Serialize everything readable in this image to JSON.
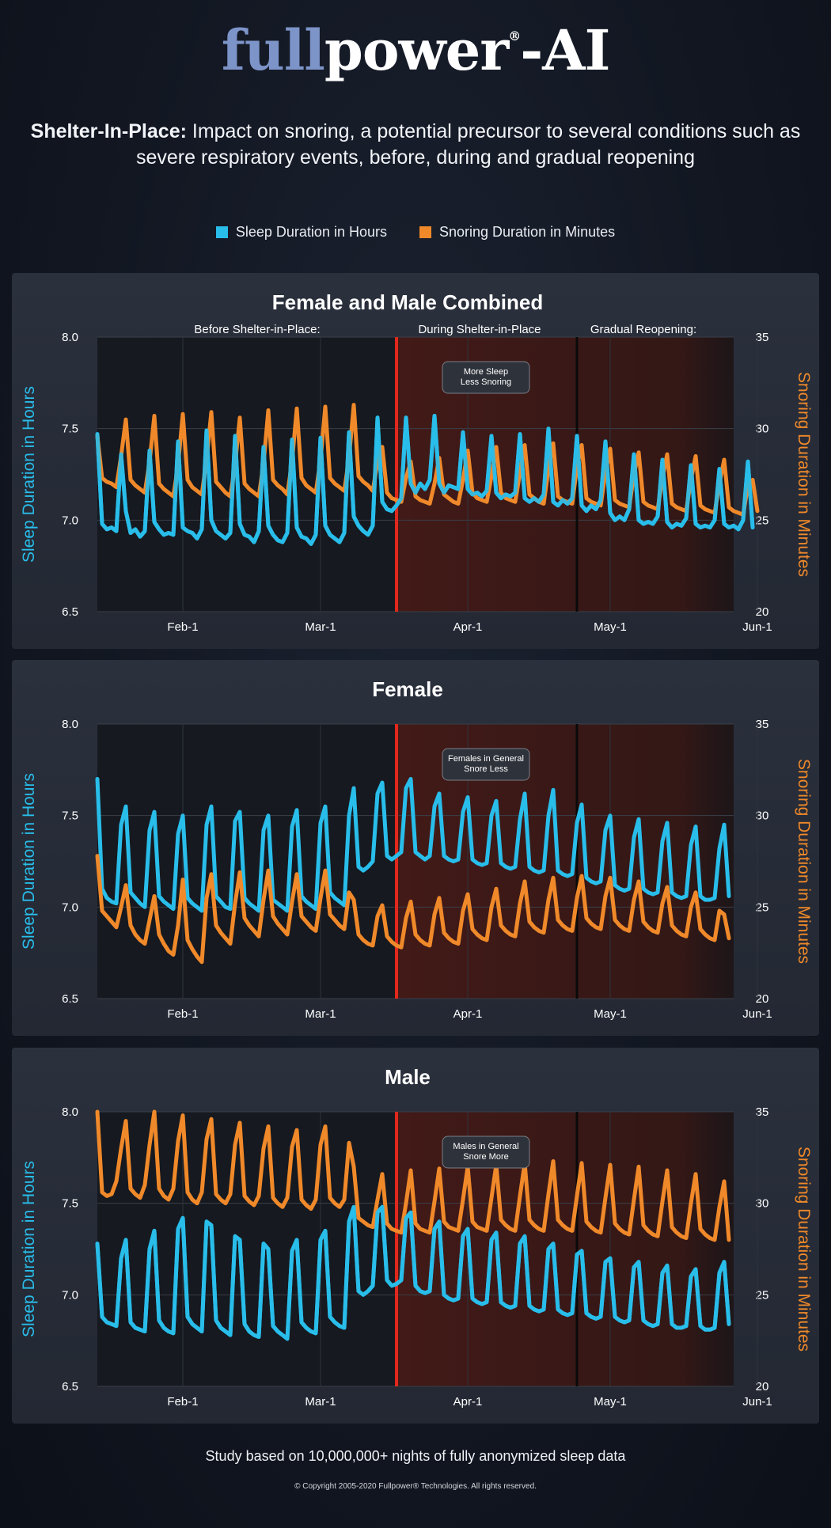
{
  "brand": {
    "logo_part1": "full",
    "logo_part2": "power",
    "logo_reg": "®",
    "logo_part3": "-AI"
  },
  "headline": {
    "bold": "Shelter-In-Place:",
    "text": " Impact on snoring, a potential precursor to several conditions such as severe respiratory events, before, during and gradual reopening"
  },
  "legend": [
    {
      "label": "Sleep Duration in Hours",
      "color": "#29bdea"
    },
    {
      "label": "Snoring Duration in Minutes",
      "color": "#f0892a"
    }
  ],
  "chart_data": [
    {
      "type": "line",
      "title": "Female and Male Combined",
      "phases": [
        "Before Shelter-in-Place:",
        "During Shelter-in-Place",
        "Gradual Reopening:"
      ],
      "annotation": [
        "More Sleep",
        "Less Snoring"
      ],
      "x_ticks": [
        "Feb-1",
        "Mar-1",
        "Apr-1",
        "May-1",
        "Jun-1"
      ],
      "ylabel_left": "Sleep Duration in Hours",
      "ylabel_right": "Snoring Duration in Minutes",
      "ylim_left": [
        6.5,
        8.0
      ],
      "yticks_left": [
        "8.0",
        "7.5",
        "7.0",
        "6.5"
      ],
      "ylim_right": [
        20,
        35
      ],
      "yticks_right": [
        "35",
        "30",
        "25",
        "20"
      ],
      "series": [
        {
          "name": "Sleep Duration in Hours",
          "color": "#29bdea",
          "values": [
            7.47,
            6.98,
            6.95,
            6.96,
            6.94,
            7.36,
            7.05,
            6.93,
            6.95,
            6.91,
            6.94,
            7.38,
            6.99,
            6.95,
            6.92,
            6.93,
            6.92,
            7.43,
            6.96,
            6.94,
            6.93,
            6.9,
            6.95,
            7.49,
            7.0,
            6.94,
            6.92,
            6.9,
            6.93,
            7.46,
            6.98,
            6.92,
            6.91,
            6.88,
            6.94,
            7.4,
            6.97,
            6.92,
            6.89,
            6.88,
            6.93,
            7.44,
            6.96,
            6.91,
            6.9,
            6.87,
            6.92,
            7.45,
            6.97,
            6.92,
            6.9,
            6.88,
            6.93,
            7.48,
            7.02,
            6.97,
            6.94,
            6.92,
            6.97,
            7.56,
            7.1,
            7.06,
            7.05,
            7.08,
            7.12,
            7.56,
            7.2,
            7.15,
            7.2,
            7.17,
            7.22,
            7.57,
            7.2,
            7.15,
            7.19,
            7.18,
            7.17,
            7.48,
            7.17,
            7.14,
            7.15,
            7.13,
            7.16,
            7.46,
            7.15,
            7.12,
            7.14,
            7.13,
            7.15,
            7.47,
            7.12,
            7.1,
            7.12,
            7.1,
            7.14,
            7.5,
            7.1,
            7.08,
            7.11,
            7.09,
            7.12,
            7.46,
            7.08,
            7.05,
            7.08,
            7.06,
            7.11,
            7.43,
            7.04,
            7.0,
            7.02,
            7.0,
            7.06,
            7.36,
            7.0,
            6.98,
            6.99,
            6.98,
            7.02,
            7.33,
            6.99,
            6.96,
            6.98,
            6.97,
            7.01,
            7.3,
            6.98,
            6.96,
            6.97,
            6.96,
            7.0,
            7.28,
            6.98,
            6.96,
            6.97,
            6.95,
            7.0,
            7.32,
            6.96
          ]
        },
        {
          "name": "Snoring Duration in Minutes",
          "color": "#f0892a",
          "values": [
            29.6,
            27.3,
            27.1,
            27.0,
            26.8,
            28.5,
            30.5,
            27.2,
            26.9,
            26.7,
            26.5,
            28.2,
            30.7,
            27.0,
            26.7,
            26.5,
            26.3,
            28.0,
            30.8,
            27.2,
            26.8,
            26.6,
            26.4,
            28.3,
            30.9,
            27.1,
            26.8,
            26.5,
            26.3,
            28.0,
            30.6,
            27.0,
            26.7,
            26.5,
            26.3,
            28.1,
            31.0,
            27.2,
            26.9,
            26.7,
            26.4,
            28.2,
            31.1,
            27.3,
            26.9,
            26.7,
            26.5,
            28.3,
            31.2,
            27.3,
            27.0,
            26.8,
            26.6,
            28.4,
            31.3,
            27.4,
            27.1,
            26.9,
            26.6,
            28.2,
            29.0,
            26.5,
            26.2,
            26.1,
            26.0,
            27.3,
            28.2,
            26.3,
            26.1,
            26.0,
            25.9,
            27.0,
            28.4,
            26.4,
            26.2,
            26.0,
            25.9,
            27.2,
            28.8,
            26.5,
            26.2,
            26.1,
            26.0,
            27.4,
            29.0,
            26.5,
            26.2,
            26.1,
            26.0,
            27.6,
            29.1,
            26.4,
            26.2,
            26.0,
            25.9,
            27.8,
            29.2,
            26.3,
            26.1,
            26.0,
            25.9,
            27.9,
            29.1,
            26.2,
            26.0,
            25.9,
            25.8,
            27.6,
            28.9,
            26.1,
            25.9,
            25.8,
            25.7,
            27.5,
            28.7,
            26.0,
            25.8,
            25.7,
            25.6,
            27.3,
            28.6,
            25.9,
            25.7,
            25.6,
            25.5,
            27.2,
            28.5,
            25.8,
            25.6,
            25.5,
            25.4,
            27.0,
            28.3,
            25.7,
            25.5,
            25.4,
            25.3,
            26.9,
            27.2,
            25.5
          ]
        }
      ]
    },
    {
      "type": "line",
      "title": "Female",
      "annotation": [
        "Females in General",
        "Snore Less"
      ],
      "x_ticks": [
        "Feb-1",
        "Mar-1",
        "Apr-1",
        "May-1",
        "Jun-1"
      ],
      "ylabel_left": "Sleep Duration in Hours",
      "ylabel_right": "Snoring Duration in Minutes",
      "ylim_left": [
        6.5,
        8.0
      ],
      "yticks_left": [
        "8.0",
        "7.5",
        "7.0",
        "6.5"
      ],
      "ylim_right": [
        20,
        35
      ],
      "yticks_right": [
        "35",
        "30",
        "25",
        "20"
      ],
      "series": [
        {
          "name": "Sleep Duration in Hours",
          "color": "#29bdea",
          "values": [
            7.7,
            7.1,
            7.05,
            7.03,
            7.02,
            7.45,
            7.55,
            7.08,
            7.05,
            7.02,
            7.0,
            7.42,
            7.52,
            7.06,
            7.03,
            7.01,
            6.99,
            7.4,
            7.5,
            7.05,
            7.02,
            7.0,
            6.98,
            7.45,
            7.55,
            7.06,
            7.03,
            7.0,
            6.99,
            7.47,
            7.52,
            7.05,
            7.02,
            7.0,
            6.98,
            7.42,
            7.5,
            7.04,
            7.02,
            7.0,
            6.98,
            7.44,
            7.53,
            7.06,
            7.03,
            7.01,
            6.99,
            7.46,
            7.55,
            7.08,
            7.05,
            7.03,
            7.01,
            7.5,
            7.65,
            7.22,
            7.2,
            7.22,
            7.25,
            7.62,
            7.68,
            7.28,
            7.26,
            7.28,
            7.3,
            7.65,
            7.7,
            7.3,
            7.28,
            7.26,
            7.28,
            7.55,
            7.62,
            7.28,
            7.26,
            7.25,
            7.26,
            7.52,
            7.6,
            7.26,
            7.24,
            7.23,
            7.24,
            7.5,
            7.58,
            7.24,
            7.22,
            7.21,
            7.22,
            7.48,
            7.62,
            7.22,
            7.2,
            7.19,
            7.2,
            7.5,
            7.64,
            7.2,
            7.18,
            7.17,
            7.18,
            7.46,
            7.56,
            7.16,
            7.14,
            7.13,
            7.14,
            7.42,
            7.5,
            7.12,
            7.1,
            7.09,
            7.1,
            7.38,
            7.48,
            7.1,
            7.08,
            7.07,
            7.08,
            7.36,
            7.46,
            7.08,
            7.06,
            7.05,
            7.06,
            7.34,
            7.44,
            7.06,
            7.04,
            7.04,
            7.05,
            7.32,
            7.45,
            7.06
          ]
        },
        {
          "name": "Snoring Duration in Minutes",
          "color": "#f0892a",
          "values": [
            27.8,
            24.8,
            24.5,
            24.2,
            23.9,
            25.0,
            26.2,
            24.0,
            23.5,
            23.2,
            23.0,
            24.3,
            25.6,
            23.5,
            23.0,
            22.6,
            22.4,
            24.0,
            26.5,
            23.2,
            22.7,
            22.3,
            22.0,
            25.5,
            26.8,
            24.0,
            23.6,
            23.3,
            23.0,
            25.2,
            26.9,
            24.4,
            24.0,
            23.7,
            23.4,
            25.4,
            27.0,
            24.5,
            24.1,
            23.8,
            23.5,
            25.3,
            26.8,
            24.5,
            24.2,
            23.9,
            23.7,
            25.5,
            27.0,
            24.6,
            24.3,
            24.0,
            23.8,
            25.8,
            25.4,
            23.5,
            23.2,
            23.0,
            22.9,
            24.5,
            25.1,
            23.4,
            23.1,
            22.9,
            22.8,
            24.4,
            25.3,
            23.5,
            23.2,
            23.0,
            22.9,
            24.6,
            25.5,
            23.6,
            23.3,
            23.1,
            23.0,
            24.8,
            25.7,
            23.8,
            23.5,
            23.3,
            23.2,
            25.0,
            26.0,
            24.0,
            23.7,
            23.5,
            23.4,
            25.2,
            26.4,
            24.2,
            23.9,
            23.7,
            23.6,
            25.4,
            26.6,
            24.3,
            24.0,
            23.8,
            23.7,
            25.5,
            26.7,
            24.4,
            24.1,
            23.9,
            23.8,
            25.6,
            26.6,
            24.3,
            24.0,
            23.8,
            23.7,
            25.4,
            26.4,
            24.2,
            23.9,
            23.7,
            23.6,
            25.2,
            26.1,
            24.0,
            23.7,
            23.5,
            23.4,
            25.0,
            25.8,
            23.8,
            23.5,
            23.3,
            23.2,
            24.8,
            24.6,
            23.3
          ]
        }
      ]
    },
    {
      "type": "line",
      "title": "Male",
      "annotation": [
        "Males in General",
        "Snore More"
      ],
      "x_ticks": [
        "Feb-1",
        "Mar-1",
        "Apr-1",
        "May-1",
        "Jun-1"
      ],
      "ylabel_left": "Sleep Duration in Hours",
      "ylabel_right": "Snoring Duration in Minutes",
      "ylim_left": [
        6.5,
        8.0
      ],
      "yticks_left": [
        "8.0",
        "7.5",
        "7.0",
        "6.5"
      ],
      "ylim_right": [
        20,
        35
      ],
      "yticks_right": [
        "35",
        "30",
        "25",
        "20"
      ],
      "series": [
        {
          "name": "Sleep Duration in Hours",
          "color": "#29bdea",
          "values": [
            7.28,
            6.88,
            6.85,
            6.84,
            6.83,
            7.2,
            7.3,
            6.85,
            6.82,
            6.81,
            6.8,
            7.25,
            7.35,
            6.86,
            6.82,
            6.8,
            6.79,
            7.36,
            7.42,
            6.88,
            6.84,
            6.82,
            6.8,
            7.4,
            7.38,
            6.86,
            6.82,
            6.8,
            6.78,
            7.32,
            7.3,
            6.84,
            6.8,
            6.78,
            6.77,
            7.28,
            7.25,
            6.83,
            6.8,
            6.78,
            6.76,
            7.24,
            7.3,
            6.85,
            6.82,
            6.8,
            6.79,
            7.3,
            7.35,
            6.88,
            6.85,
            6.83,
            6.82,
            7.4,
            7.48,
            7.02,
            7.0,
            7.02,
            7.05,
            7.45,
            7.48,
            7.08,
            7.05,
            7.06,
            7.08,
            7.42,
            7.45,
            7.05,
            7.02,
            7.01,
            7.02,
            7.36,
            7.4,
            7.0,
            6.98,
            6.97,
            6.98,
            7.32,
            7.36,
            6.98,
            6.96,
            6.95,
            6.96,
            7.3,
            7.34,
            6.96,
            6.94,
            6.93,
            6.94,
            7.28,
            7.32,
            6.94,
            6.92,
            6.91,
            6.92,
            7.25,
            7.28,
            6.92,
            6.9,
            6.89,
            6.9,
            7.22,
            7.24,
            6.9,
            6.88,
            6.87,
            6.88,
            7.18,
            7.2,
            6.88,
            6.86,
            6.85,
            6.86,
            7.15,
            7.18,
            6.86,
            6.84,
            6.83,
            6.84,
            7.12,
            7.16,
            6.84,
            6.82,
            6.82,
            6.83,
            7.1,
            7.14,
            6.83,
            6.81,
            6.81,
            6.82,
            7.12,
            7.18,
            6.84
          ]
        },
        {
          "name": "Snoring Duration in Minutes",
          "color": "#f0892a",
          "values": [
            35.0,
            30.6,
            30.4,
            30.5,
            31.2,
            33.0,
            34.5,
            30.8,
            30.5,
            30.3,
            31.0,
            33.2,
            35.0,
            30.8,
            30.4,
            30.2,
            30.8,
            33.4,
            34.8,
            30.6,
            30.2,
            30.0,
            30.6,
            33.5,
            34.6,
            30.5,
            30.2,
            30.0,
            30.5,
            33.2,
            34.4,
            30.4,
            30.1,
            29.9,
            30.4,
            33.0,
            34.2,
            30.3,
            30.0,
            29.8,
            30.3,
            33.1,
            34.0,
            30.2,
            29.9,
            29.7,
            30.2,
            33.2,
            34.2,
            30.3,
            30.0,
            29.8,
            30.2,
            33.3,
            32.0,
            29.2,
            29.0,
            28.8,
            28.7,
            30.2,
            31.6,
            28.9,
            28.6,
            28.5,
            28.4,
            30.0,
            31.8,
            28.9,
            28.6,
            28.5,
            28.4,
            30.1,
            31.9,
            29.0,
            28.7,
            28.6,
            28.5,
            30.2,
            32.0,
            29.0,
            28.7,
            28.6,
            28.5,
            30.3,
            32.1,
            29.1,
            28.8,
            28.6,
            28.5,
            30.4,
            32.2,
            29.1,
            28.8,
            28.6,
            28.5,
            30.5,
            32.3,
            29.1,
            28.8,
            28.6,
            28.5,
            30.4,
            32.2,
            29.0,
            28.7,
            28.5,
            28.4,
            30.3,
            32.1,
            28.9,
            28.6,
            28.4,
            28.3,
            30.2,
            32.0,
            28.8,
            28.5,
            28.3,
            28.2,
            30.1,
            31.8,
            28.7,
            28.4,
            28.2,
            28.1,
            30.0,
            31.6,
            28.6,
            28.3,
            28.1,
            28.0,
            29.8,
            31.2,
            28.0
          ]
        }
      ]
    }
  ],
  "footer": {
    "study": "Study based on 10,000,000+ nights of fully anonymized sleep data",
    "copyright": "© Copyright 2005-2020 Fullpower® Technologies. All rights reserved."
  }
}
